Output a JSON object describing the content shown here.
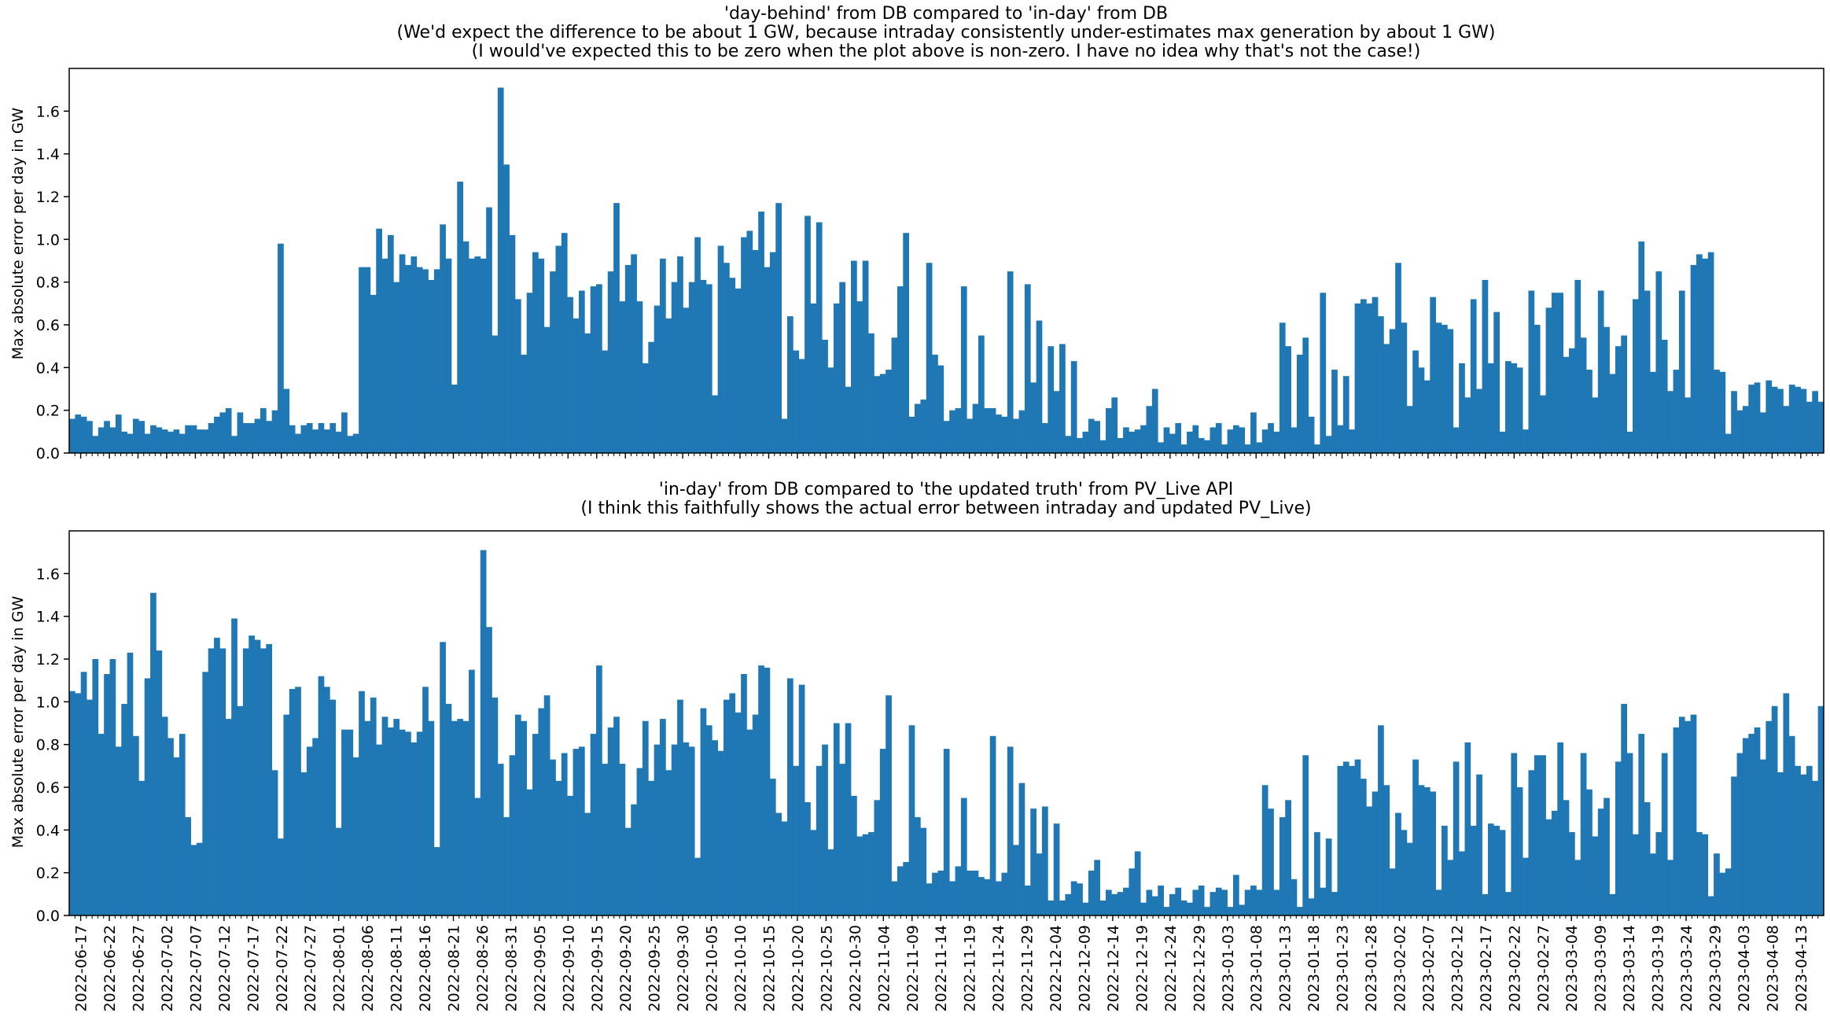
{
  "colors": {
    "bar": "#1f77b4",
    "axis": "#000000",
    "background": "#ffffff"
  },
  "chart_data": [
    {
      "type": "bar",
      "title_lines": [
        "'day-behind' from DB compared to 'in-day' from DB",
        "(We'd expect the difference to be about 1 GW, because intraday consistently under-estimates max generation by about 1 GW)",
        "(I would've expected this to be zero when the plot above is non-zero. I have no idea why that's not the case!)"
      ],
      "xlabel": "",
      "ylabel": "Max absolute error per day in GW",
      "ylim": [
        0,
        1.8
      ],
      "yticks": [
        "0.0",
        "0.2",
        "0.4",
        "0.6",
        "0.8",
        "1.0",
        "1.2",
        "1.4",
        "1.6"
      ],
      "x_start": "2022-06-15",
      "x_end": "2023-04-17",
      "grid": false,
      "values": [
        0.16,
        0.18,
        0.17,
        0.15,
        0.08,
        0.12,
        0.15,
        0.12,
        0.18,
        0.1,
        0.09,
        0.16,
        0.15,
        0.09,
        0.13,
        0.12,
        0.11,
        0.1,
        0.11,
        0.09,
        0.13,
        0.13,
        0.11,
        0.11,
        0.14,
        0.17,
        0.19,
        0.21,
        0.08,
        0.19,
        0.14,
        0.14,
        0.16,
        0.21,
        0.15,
        0.2,
        0.98,
        0.3,
        0.13,
        0.09,
        0.13,
        0.14,
        0.11,
        0.14,
        0.11,
        0.14,
        0.1,
        0.19,
        0.08,
        0.09,
        0.87,
        0.87,
        0.74,
        1.05,
        0.91,
        1.02,
        0.8,
        0.93,
        0.88,
        0.92,
        0.87,
        0.86,
        0.81,
        0.86,
        1.07,
        0.91,
        0.32,
        1.27,
        0.99,
        0.91,
        0.92,
        0.91,
        1.15,
        0.55,
        1.71,
        1.35,
        1.02,
        0.72,
        0.46,
        0.75,
        0.94,
        0.91,
        0.59,
        0.85,
        0.97,
        1.03,
        0.73,
        0.63,
        0.76,
        0.56,
        0.78,
        0.79,
        0.48,
        0.85,
        1.17,
        0.71,
        0.88,
        0.93,
        0.71,
        0.42,
        0.52,
        0.69,
        0.91,
        0.63,
        0.8,
        0.92,
        0.68,
        0.8,
        1.01,
        0.81,
        0.79,
        0.27,
        0.97,
        0.89,
        0.82,
        0.77,
        1.01,
        1.04,
        0.95,
        1.13,
        0.87,
        0.94,
        1.17,
        0.16,
        0.64,
        0.48,
        0.44,
        1.11,
        0.7,
        1.08,
        0.53,
        0.4,
        0.7,
        0.8,
        0.31,
        0.9,
        0.71,
        0.9,
        0.56,
        0.36,
        0.37,
        0.39,
        0.54,
        0.78,
        1.03,
        0.17,
        0.23,
        0.25,
        0.89,
        0.46,
        0.41,
        0.15,
        0.2,
        0.21,
        0.78,
        0.16,
        0.23,
        0.55,
        0.21,
        0.21,
        0.18,
        0.17,
        0.85,
        0.16,
        0.2,
        0.79,
        0.33,
        0.62,
        0.14,
        0.5,
        0.29,
        0.51,
        0.08,
        0.43,
        0.07,
        0.1,
        0.16,
        0.15,
        0.06,
        0.21,
        0.26,
        0.07,
        0.12,
        0.1,
        0.11,
        0.13,
        0.22,
        0.3,
        0.05,
        0.12,
        0.09,
        0.14,
        0.04,
        0.1,
        0.13,
        0.07,
        0.06,
        0.12,
        0.14,
        0.04,
        0.11,
        0.13,
        0.12,
        0.04,
        0.19,
        0.05,
        0.11,
        0.14,
        0.1,
        0.61,
        0.5,
        0.12,
        0.46,
        0.54,
        0.17,
        0.04,
        0.75,
        0.08,
        0.39,
        0.13,
        0.36,
        0.11,
        0.7,
        0.72,
        0.7,
        0.73,
        0.64,
        0.51,
        0.58,
        0.89,
        0.61,
        0.22,
        0.48,
        0.4,
        0.34,
        0.73,
        0.61,
        0.6,
        0.58,
        0.12,
        0.42,
        0.26,
        0.72,
        0.3,
        0.81,
        0.42,
        0.66,
        0.1,
        0.43,
        0.42,
        0.4,
        0.11,
        0.76,
        0.6,
        0.27,
        0.68,
        0.75,
        0.75,
        0.45,
        0.49,
        0.81,
        0.54,
        0.39,
        0.26,
        0.76,
        0.59,
        0.37,
        0.5,
        0.55,
        0.1,
        0.72,
        0.99,
        0.76,
        0.38,
        0.85,
        0.53,
        0.29,
        0.39,
        0.76,
        0.26,
        0.88,
        0.93,
        0.91,
        0.94,
        0.39,
        0.38,
        0.09,
        0.29,
        0.2,
        0.22,
        0.32,
        0.33,
        0.19,
        0.34,
        0.31,
        0.3,
        0.22,
        0.32,
        0.31,
        0.3,
        0.24,
        0.29,
        0.24
      ]
    },
    {
      "type": "bar",
      "title_lines": [
        "'in-day' from DB compared to 'the updated truth' from PV_Live API",
        "(I think this faithfully shows the actual error between intraday and updated PV_Live)"
      ],
      "xlabel": "",
      "ylabel": "Max absolute error per day in GW",
      "ylim": [
        0,
        1.8
      ],
      "yticks": [
        "0.0",
        "0.2",
        "0.4",
        "0.6",
        "0.8",
        "1.0",
        "1.2",
        "1.4",
        "1.6"
      ],
      "x_start": "2022-06-15",
      "x_end": "2023-04-17",
      "grid": false,
      "xtick_labels": [
        "2022-06-17",
        "2022-06-22",
        "2022-06-27",
        "2022-07-02",
        "2022-07-07",
        "2022-07-12",
        "2022-07-17",
        "2022-07-22",
        "2022-07-27",
        "2022-08-01",
        "2022-08-06",
        "2022-08-11",
        "2022-08-16",
        "2022-08-21",
        "2022-08-26",
        "2022-08-31",
        "2022-09-05",
        "2022-09-10",
        "2022-09-15",
        "2022-09-20",
        "2022-09-25",
        "2022-09-30",
        "2022-10-05",
        "2022-10-10",
        "2022-10-15",
        "2022-10-20",
        "2022-10-25",
        "2022-10-30",
        "2022-11-04",
        "2022-11-09",
        "2022-11-14",
        "2022-11-19",
        "2022-11-24",
        "2022-11-29",
        "2022-12-04",
        "2022-12-09",
        "2022-12-14",
        "2022-12-19",
        "2022-12-24",
        "2022-12-29",
        "2023-01-03",
        "2023-01-08",
        "2023-01-13",
        "2023-01-18",
        "2023-01-23",
        "2023-01-28",
        "2023-02-02",
        "2023-02-07",
        "2023-02-12",
        "2023-02-17",
        "2023-02-22",
        "2023-02-27",
        "2023-03-04",
        "2023-03-09",
        "2023-03-14",
        "2023-03-19",
        "2023-03-24",
        "2023-03-29",
        "2023-04-03",
        "2023-04-08",
        "2023-04-13"
      ],
      "values": [
        1.05,
        1.04,
        1.14,
        1.01,
        1.2,
        0.85,
        1.13,
        1.2,
        0.79,
        0.99,
        1.23,
        0.84,
        0.63,
        1.11,
        1.51,
        1.24,
        0.93,
        0.83,
        0.74,
        0.85,
        0.46,
        0.33,
        0.34,
        1.14,
        1.25,
        1.3,
        1.25,
        0.92,
        1.39,
        0.98,
        1.25,
        1.31,
        1.29,
        1.25,
        1.27,
        0.68,
        0.36,
        0.94,
        1.06,
        1.07,
        0.67,
        0.79,
        0.83,
        1.12,
        1.07,
        1.01,
        0.41,
        0.87,
        0.87,
        0.74,
        1.05,
        0.91,
        1.02,
        0.8,
        0.93,
        0.88,
        0.92,
        0.87,
        0.86,
        0.81,
        0.86,
        1.07,
        0.91,
        0.32,
        1.28,
        0.99,
        0.91,
        0.92,
        0.91,
        1.15,
        0.55,
        1.71,
        1.35,
        1.02,
        0.71,
        0.46,
        0.75,
        0.94,
        0.91,
        0.59,
        0.85,
        0.97,
        1.03,
        0.73,
        0.63,
        0.76,
        0.56,
        0.78,
        0.79,
        0.48,
        0.85,
        1.17,
        0.71,
        0.88,
        0.93,
        0.71,
        0.41,
        0.52,
        0.69,
        0.91,
        0.63,
        0.8,
        0.92,
        0.68,
        0.8,
        1.01,
        0.81,
        0.79,
        0.27,
        0.97,
        0.89,
        0.82,
        0.77,
        1.01,
        1.04,
        0.95,
        1.13,
        0.87,
        0.94,
        1.17,
        1.16,
        0.64,
        0.48,
        0.44,
        1.11,
        0.7,
        1.08,
        0.53,
        0.4,
        0.7,
        0.8,
        0.31,
        0.9,
        0.71,
        0.9,
        0.56,
        0.37,
        0.38,
        0.39,
        0.54,
        0.78,
        1.03,
        0.16,
        0.23,
        0.25,
        0.89,
        0.46,
        0.41,
        0.15,
        0.2,
        0.21,
        0.78,
        0.16,
        0.23,
        0.55,
        0.21,
        0.21,
        0.18,
        0.17,
        0.84,
        0.16,
        0.2,
        0.79,
        0.33,
        0.62,
        0.14,
        0.5,
        0.29,
        0.51,
        0.07,
        0.43,
        0.07,
        0.1,
        0.16,
        0.15,
        0.06,
        0.21,
        0.26,
        0.07,
        0.12,
        0.1,
        0.11,
        0.13,
        0.22,
        0.3,
        0.06,
        0.12,
        0.09,
        0.14,
        0.04,
        0.1,
        0.13,
        0.07,
        0.06,
        0.12,
        0.14,
        0.04,
        0.11,
        0.13,
        0.12,
        0.04,
        0.19,
        0.05,
        0.12,
        0.14,
        0.12,
        0.61,
        0.5,
        0.12,
        0.46,
        0.54,
        0.17,
        0.04,
        0.75,
        0.08,
        0.39,
        0.13,
        0.36,
        0.11,
        0.7,
        0.72,
        0.7,
        0.73,
        0.64,
        0.51,
        0.58,
        0.89,
        0.61,
        0.22,
        0.48,
        0.4,
        0.34,
        0.73,
        0.61,
        0.6,
        0.58,
        0.12,
        0.42,
        0.26,
        0.72,
        0.3,
        0.81,
        0.42,
        0.66,
        0.1,
        0.43,
        0.42,
        0.4,
        0.11,
        0.76,
        0.6,
        0.27,
        0.68,
        0.75,
        0.75,
        0.45,
        0.49,
        0.81,
        0.54,
        0.39,
        0.26,
        0.76,
        0.59,
        0.37,
        0.5,
        0.55,
        0.1,
        0.72,
        0.99,
        0.76,
        0.38,
        0.85,
        0.53,
        0.29,
        0.39,
        0.76,
        0.26,
        0.88,
        0.93,
        0.91,
        0.94,
        0.39,
        0.38,
        0.09,
        0.29,
        0.2,
        0.22,
        0.65,
        0.76,
        0.83,
        0.85,
        0.88,
        0.73,
        0.91,
        0.98,
        0.67,
        1.04,
        0.84,
        0.7,
        0.66,
        0.7,
        0.63,
        0.98
      ]
    }
  ]
}
